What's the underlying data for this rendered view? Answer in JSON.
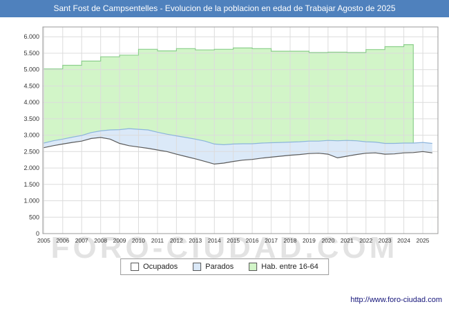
{
  "header": {
    "title": "Sant Fost de Campsentelles - Evolucion de la poblacion en edad de Trabajar Agosto de 2025",
    "bg": "#4f81bd",
    "fg": "#ffffff"
  },
  "watermark": "FORO-CIUDAD.COM",
  "footer": {
    "url": "http://www.foro-ciudad.com"
  },
  "legend": {
    "items": [
      {
        "label": "Ocupados",
        "fill": "#ffffff",
        "line": "#595959"
      },
      {
        "label": "Parados",
        "fill": "#dbe9f8",
        "line": "#8cb4dc"
      },
      {
        "label": "Hab. entre 16-64",
        "fill": "#d2f5c8",
        "line": "#8ccf8c"
      }
    ]
  },
  "chart_data": {
    "type": "area",
    "title": "Sant Fost de Campsentelles - Evolucion de la poblacion en edad de Trabajar Agosto de 2025",
    "xlabel": "",
    "ylabel": "",
    "grid": true,
    "legend_position": "bottom",
    "ylim": [
      0,
      6300
    ],
    "yticks": [
      0,
      500,
      1000,
      1500,
      2000,
      2500,
      3000,
      3500,
      4000,
      4500,
      5000,
      5500,
      6000
    ],
    "xticks": [
      2005,
      2006,
      2007,
      2008,
      2009,
      2010,
      2011,
      2012,
      2013,
      2014,
      2015,
      2016,
      2017,
      2018,
      2019,
      2020,
      2021,
      2022,
      2023,
      2024,
      2025
    ],
    "x": [
      2005,
      2005.5,
      2006,
      2006.5,
      2007,
      2007.5,
      2008,
      2008.5,
      2009,
      2009.5,
      2010,
      2010.5,
      2011,
      2011.5,
      2012,
      2012.5,
      2013,
      2013.5,
      2014,
      2014.5,
      2015,
      2015.5,
      2016,
      2016.5,
      2017,
      2017.5,
      2018,
      2018.5,
      2019,
      2019.5,
      2020,
      2020.5,
      2021,
      2021.5,
      2022,
      2022.5,
      2023,
      2023.5,
      2024,
      2024.5,
      2025,
      2025.5
    ],
    "series": [
      {
        "name": "Ocupados",
        "fill": "#ffffff",
        "line": "#595959",
        "values": [
          2620,
          2680,
          2730,
          2780,
          2820,
          2900,
          2930,
          2880,
          2750,
          2680,
          2640,
          2600,
          2550,
          2500,
          2420,
          2350,
          2280,
          2200,
          2120,
          2150,
          2200,
          2240,
          2260,
          2300,
          2330,
          2360,
          2390,
          2410,
          2440,
          2450,
          2420,
          2310,
          2360,
          2410,
          2450,
          2460,
          2420,
          2430,
          2460,
          2470,
          2500,
          2460
        ]
      },
      {
        "name": "Parados",
        "fill": "#dbe9f8",
        "line": "#8cb4dc",
        "stacked_on": "Ocupados",
        "values": [
          140,
          150,
          150,
          160,
          170,
          180,
          200,
          280,
          420,
          520,
          540,
          560,
          540,
          530,
          560,
          580,
          600,
          620,
          610,
          560,
          530,
          500,
          480,
          460,
          440,
          420,
          400,
          390,
          380,
          370,
          420,
          520,
          480,
          420,
          350,
          330,
          330,
          320,
          300,
          290,
          280,
          290
        ]
      },
      {
        "name": "Hab. entre 16-64",
        "fill": "#d2f5c8",
        "line": "#8ccf8c",
        "step": true,
        "x": [
          2005,
          2006,
          2007,
          2008,
          2009,
          2010,
          2011,
          2012,
          2013,
          2014,
          2015,
          2016,
          2017,
          2018,
          2019,
          2020,
          2021,
          2022,
          2023,
          2024
        ],
        "end_x": 2024.5,
        "values": [
          5020,
          5130,
          5260,
          5390,
          5440,
          5620,
          5570,
          5640,
          5600,
          5620,
          5660,
          5640,
          5560,
          5560,
          5520,
          5530,
          5520,
          5610,
          5700,
          5760
        ]
      }
    ]
  }
}
